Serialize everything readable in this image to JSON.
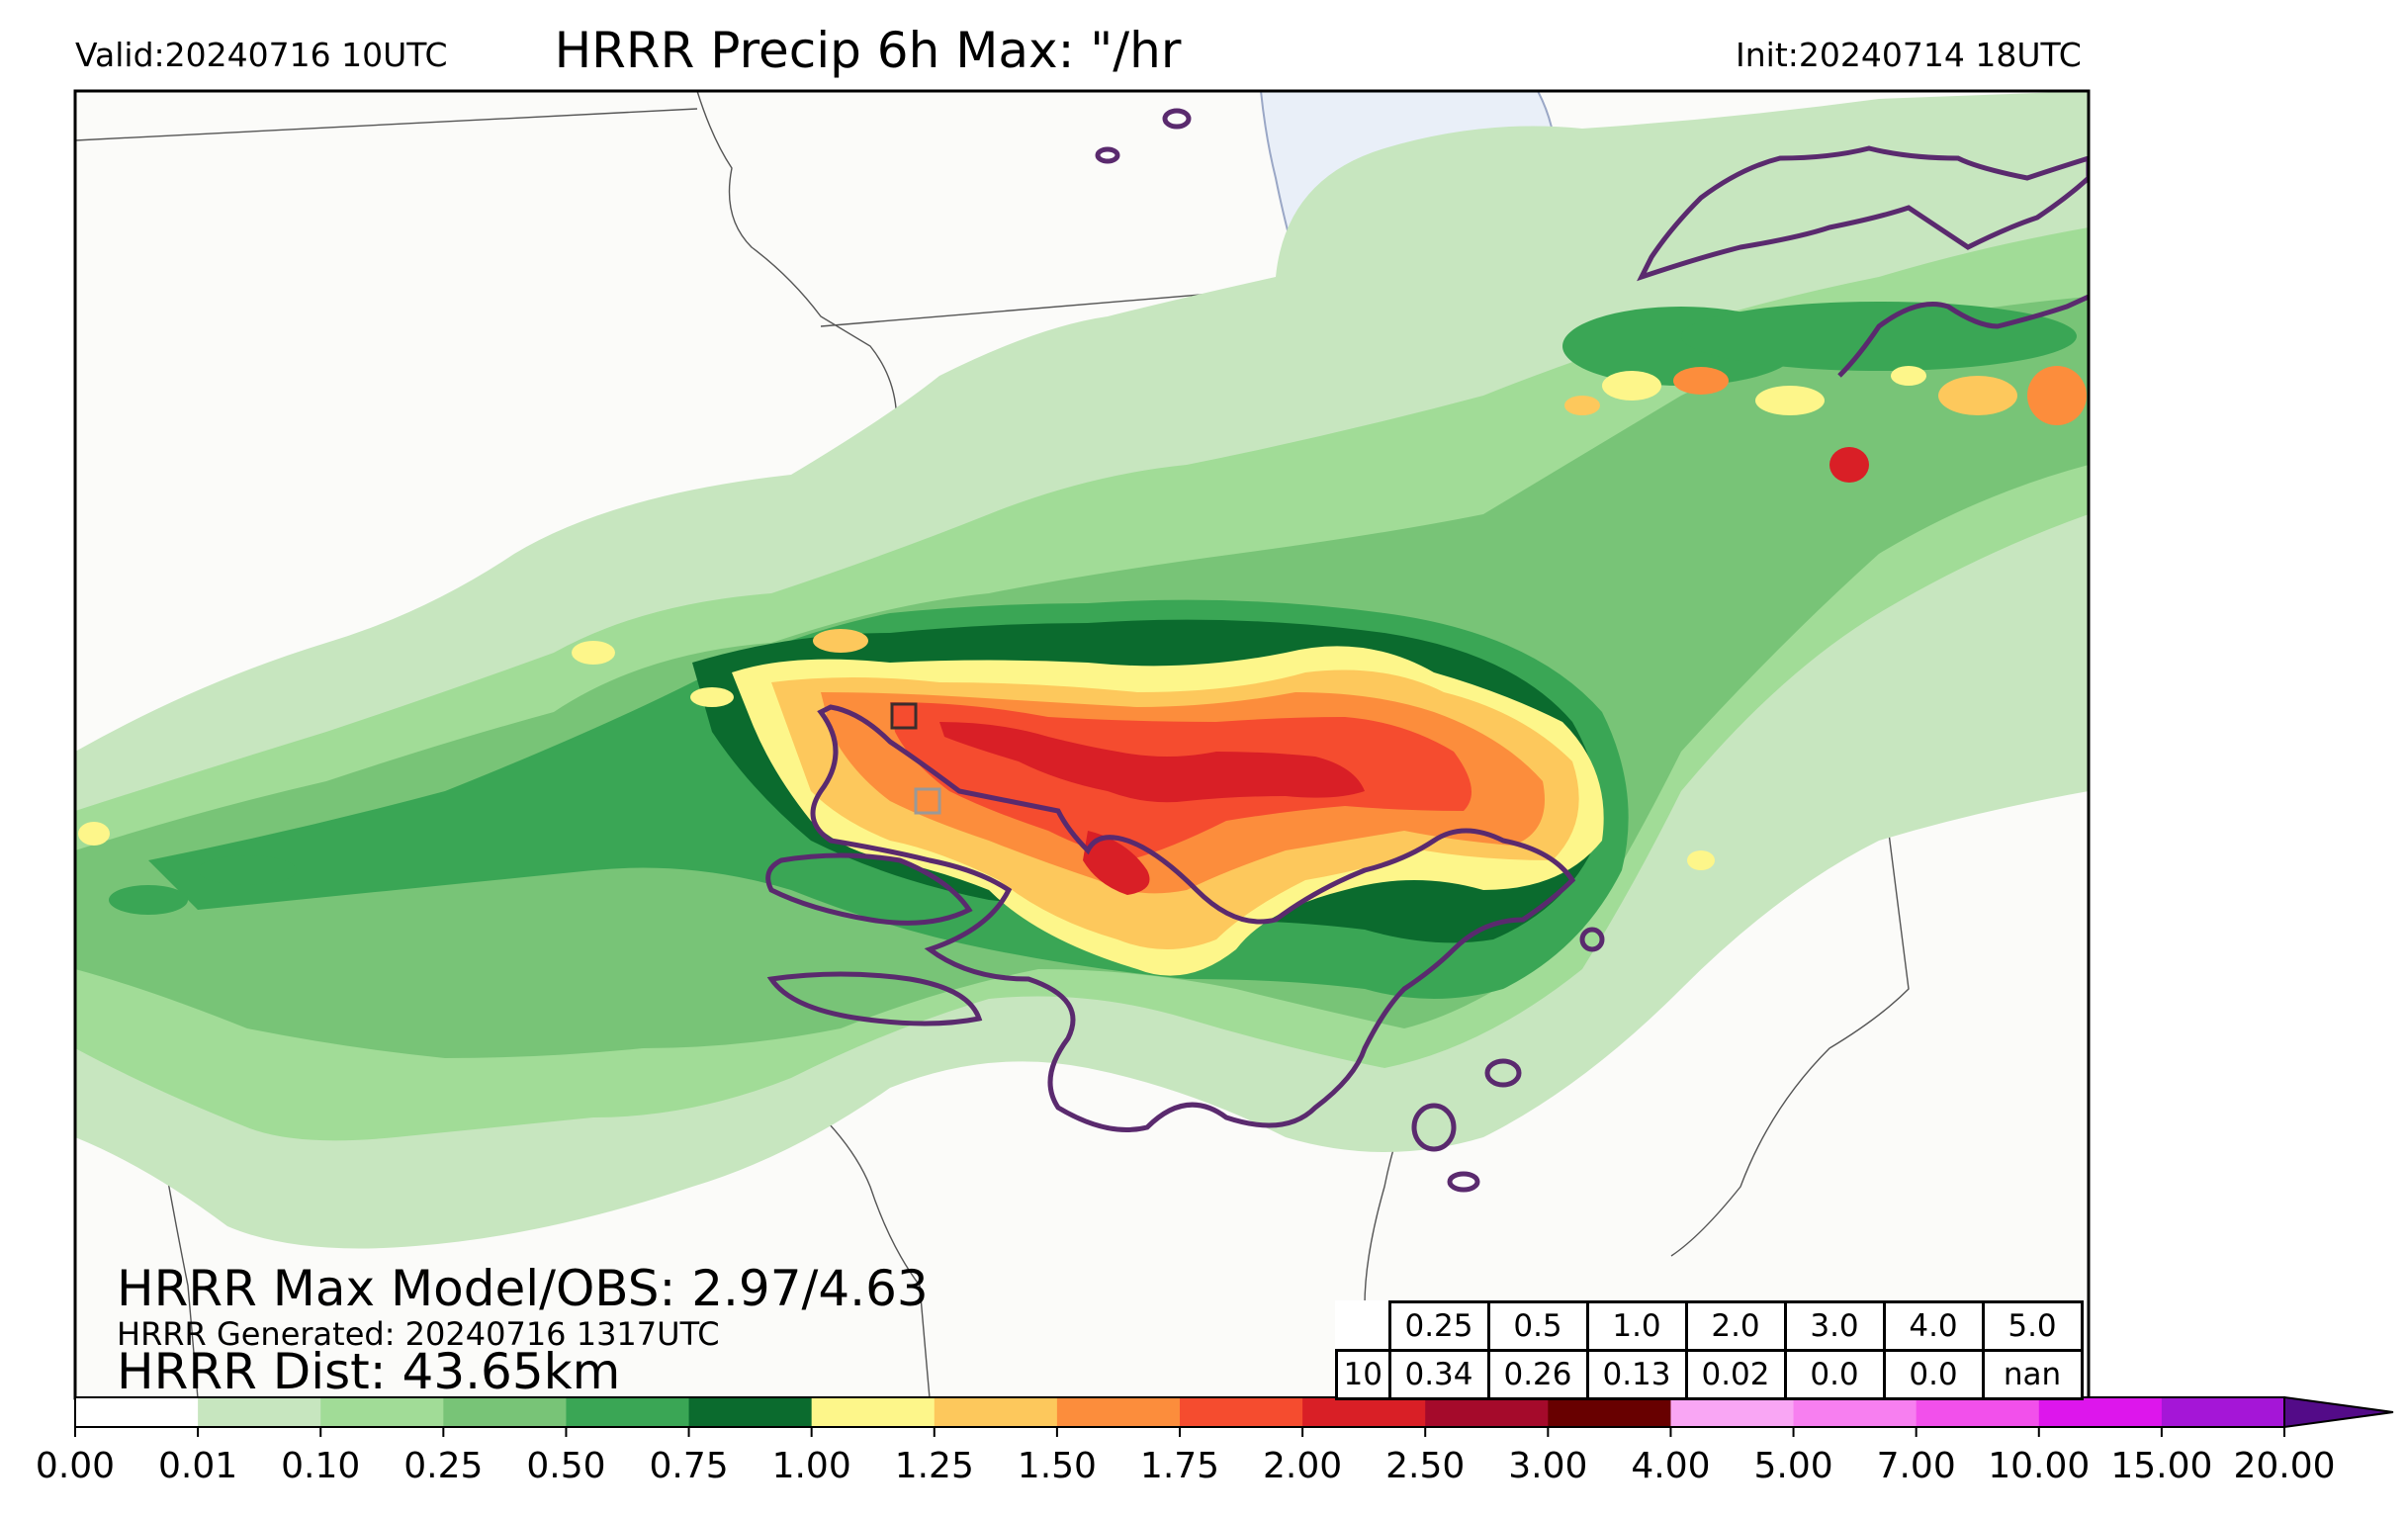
{
  "header": {
    "valid": "Valid:20240716 10UTC",
    "title": "HRRR Precip 6h Max: \"/hr",
    "init": "Init:20240714 18UTC"
  },
  "stats": {
    "max_line": "HRRR Max Model/OBS: 2.97/4.63",
    "generated": "HRRR Generated: 20240716 1317UTC",
    "dist": "HRRR Dist: 43.65km"
  },
  "threshold_table": {
    "row_label": "10",
    "thresholds": [
      "0.25",
      "0.5",
      "1.0",
      "2.0",
      "3.0",
      "4.0",
      "5.0"
    ],
    "scores": [
      "0.34",
      "0.26",
      "0.13",
      "0.02",
      "0.0",
      "0.0",
      "nan"
    ]
  },
  "colorbar": {
    "ticks": [
      "0.00",
      "0.01",
      "0.10",
      "0.25",
      "0.50",
      "0.75",
      "1.00",
      "1.25",
      "1.50",
      "1.75",
      "2.00",
      "2.50",
      "3.00",
      "4.00",
      "5.00",
      "7.00",
      "10.00",
      "15.00",
      "20.00"
    ],
    "colors": [
      "#ffffff",
      "#c7e6bf",
      "#a1dc97",
      "#78c477",
      "#3aa655",
      "#0b6b2e",
      "#fdf68a",
      "#fdc85c",
      "#fc8d3c",
      "#f54c2f",
      "#d91f26",
      "#a50a2b",
      "#680000",
      "#f9a6f4",
      "#f77ff0",
      "#f250eb",
      "#dd16ec",
      "#a516d7"
    ],
    "extend_color": "#530b88"
  },
  "colors": {
    "obs_contour": "#5a2a6e",
    "lake": "#e9eff8",
    "background": "#fbfbf9"
  }
}
